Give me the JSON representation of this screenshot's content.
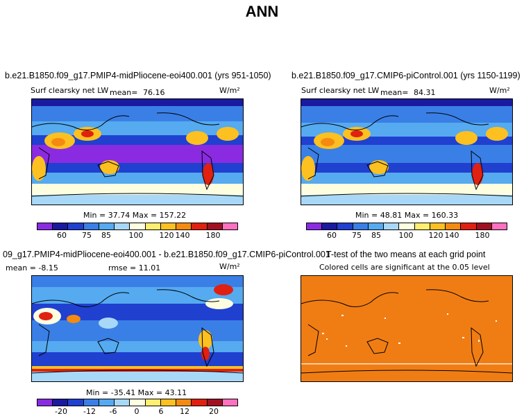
{
  "title": "ANN",
  "panels": {
    "p1": {
      "case_title": "b.e21.B1850.f09_g17.PMIP4-midPliocene-eoi400.001 (yrs 951-1050)",
      "variable": "Surf clearsky net LW",
      "mean_label": "mean=",
      "mean_value": "76.16",
      "units": "W/m²",
      "minmax": "Min =   37.74  Max =  157.22"
    },
    "p2": {
      "case_title": "b.e21.B1850.f09_g17.CMIP6-piControl.001 (yrs 1150-1199)",
      "variable": "Surf clearsky net LW",
      "mean_label": "mean=",
      "mean_value": "84.31",
      "units": "W/m²",
      "minmax": "Min =   48.81  Max =  160.33"
    },
    "p3": {
      "case_title": "09_g17.PMIP4-midPliocene-eoi400.001 - b.e21.B1850.f09_g17.CMIP6-piControl.001",
      "mean_text": "mean =  -8.15",
      "rmse_text": "rmse =  11.01",
      "units": "W/m²",
      "minmax": "Min = -35.41  Max =  43.11"
    },
    "p4": {
      "case_title": "T-test of the two means at each grid point",
      "subtitle": "Colored cells are significant at the 0.05 level"
    }
  },
  "colorbar_top": {
    "ticks": [
      "60",
      "75",
      "85",
      "100",
      "120",
      "140",
      "180"
    ],
    "colors": [
      "#8a2be2",
      "#1a1aa0",
      "#2040d0",
      "#3a7fe6",
      "#55aaf0",
      "#a8d8f8",
      "#fdfde0",
      "#ffee70",
      "#fcc020",
      "#f58a10",
      "#e02010",
      "#a01020",
      "#ff70c0"
    ]
  },
  "colorbar_diff": {
    "ticks": [
      "-20",
      "-12",
      "-6",
      "0",
      "6",
      "12",
      "20"
    ],
    "colors": [
      "#8a2be2",
      "#1a1aa0",
      "#2040d0",
      "#3a7fe6",
      "#55aaf0",
      "#a8d8f8",
      "#fdfde0",
      "#ffee70",
      "#fcc020",
      "#f58a10",
      "#e02010",
      "#a01020",
      "#ff70c0"
    ]
  },
  "ttest_color": "#f07d14"
}
